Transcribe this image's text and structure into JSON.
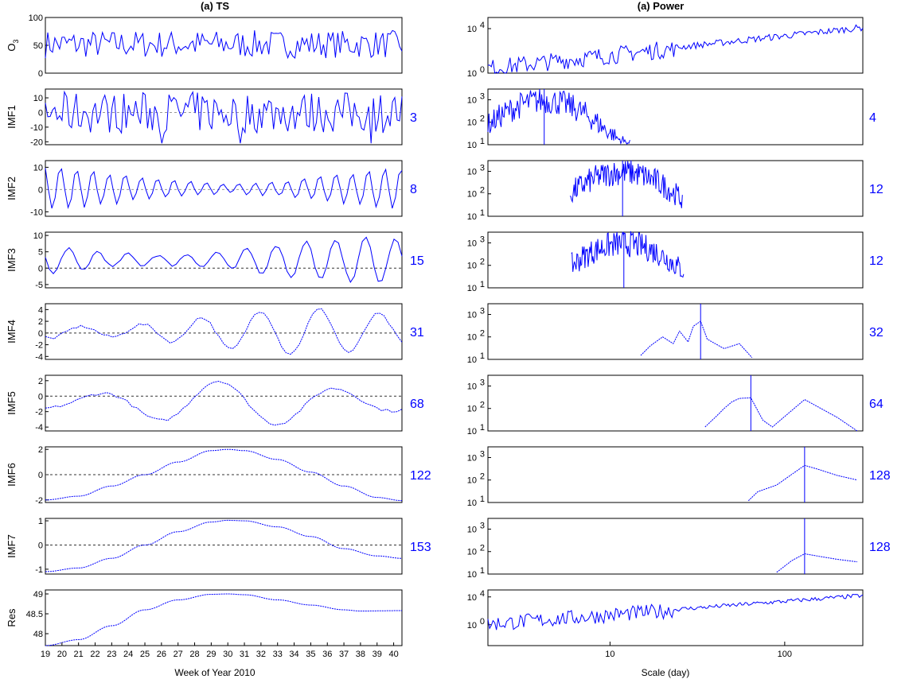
{
  "colors": {
    "line": "#0000ff",
    "axis": "#000000",
    "zero": "#999999"
  },
  "left_title": "(a) TS",
  "right_title": "(a) Power",
  "left_xlabel": "Week of Year 2010",
  "right_xlabel": "Scale (day)",
  "left_xticks": [
    "19",
    "20",
    "21",
    "22",
    "23",
    "24",
    "25",
    "26",
    "27",
    "28",
    "29",
    "30",
    "31",
    "32",
    "33",
    "34",
    "35",
    "36",
    "37",
    "38",
    "39",
    "40"
  ],
  "right_xticks": [
    "10",
    "100"
  ],
  "chart_data": [
    {
      "type": "line",
      "panel": "time-series",
      "ylabel": "O3",
      "ylim": [
        0,
        100
      ],
      "yticks": [
        "100",
        "50",
        "0"
      ],
      "xlim": [
        19,
        40.5
      ],
      "zero_line": false,
      "description": "noisy ozone weekly series roughly 20-85"
    },
    {
      "type": "line",
      "panel": "time-series",
      "ylabel": "IMF1",
      "ylim": [
        -22,
        16
      ],
      "yticks": [
        "10",
        "0",
        "-10",
        "-20"
      ],
      "xlim": [
        19,
        40.5
      ],
      "period_label": "3",
      "zero_line": true
    },
    {
      "type": "line",
      "panel": "time-series",
      "ylabel": "IMF2",
      "ylim": [
        -12,
        13
      ],
      "yticks": [
        "10",
        "0",
        "-10"
      ],
      "xlim": [
        19,
        40.5
      ],
      "period_label": "8",
      "zero_line": true
    },
    {
      "type": "line",
      "panel": "time-series",
      "ylabel": "IMF3",
      "ylim": [
        -6,
        11
      ],
      "yticks": [
        "10",
        "5",
        "0",
        "-5"
      ],
      "xlim": [
        19,
        40.5
      ],
      "period_label": "15",
      "zero_line": true
    },
    {
      "type": "line",
      "panel": "time-series",
      "ylabel": "IMF4",
      "ylim": [
        -4.5,
        5
      ],
      "yticks": [
        "4",
        "2",
        "0",
        "-2",
        "-4"
      ],
      "xlim": [
        19,
        40.5
      ],
      "period_label": "31",
      "zero_line": true
    },
    {
      "type": "line",
      "panel": "time-series",
      "ylabel": "IMF5",
      "ylim": [
        -4.5,
        2.7
      ],
      "yticks": [
        "2",
        "0",
        "-2",
        "-4"
      ],
      "xlim": [
        19,
        40.5
      ],
      "period_label": "68",
      "zero_line": true
    },
    {
      "type": "line",
      "panel": "time-series",
      "ylabel": "IMF6",
      "ylim": [
        -2.2,
        2.2
      ],
      "yticks": [
        "2",
        "0",
        "-2"
      ],
      "xlim": [
        19,
        40.5
      ],
      "period_label": "122",
      "zero_line": true,
      "x": [
        19,
        21,
        23,
        25,
        27,
        29,
        30,
        31,
        33,
        35,
        37,
        39,
        40.5
      ],
      "y": [
        -2,
        -1.7,
        -0.9,
        0,
        1,
        1.9,
        2,
        1.9,
        1.2,
        0.2,
        -0.9,
        -1.8,
        -2.05
      ]
    },
    {
      "type": "line",
      "panel": "time-series",
      "ylabel": "IMF7",
      "ylim": [
        -1.2,
        1.1
      ],
      "yticks": [
        "1",
        "0",
        "-1"
      ],
      "xlim": [
        19,
        40.5
      ],
      "period_label": "153",
      "zero_line": true,
      "x": [
        19,
        21,
        23,
        25,
        27,
        29,
        30,
        31,
        33,
        35,
        37,
        39,
        40.5
      ],
      "y": [
        -1.1,
        -0.95,
        -0.55,
        0,
        0.55,
        0.95,
        1.02,
        1,
        0.75,
        0.35,
        -0.15,
        -0.45,
        -0.55
      ]
    },
    {
      "type": "line",
      "panel": "time-series",
      "ylabel": "Res",
      "ylim": [
        47.7,
        49.1
      ],
      "yticks": [
        "49",
        "48.5",
        "48"
      ],
      "xlim": [
        19,
        40.5
      ],
      "zero_line": false,
      "x": [
        19,
        21,
        23,
        25,
        27,
        29,
        30,
        31,
        33,
        35,
        37,
        38,
        40.5
      ],
      "y": [
        47.7,
        47.85,
        48.2,
        48.6,
        48.85,
        48.99,
        49,
        48.98,
        48.85,
        48.72,
        48.6,
        48.57,
        48.58
      ]
    },
    {
      "type": "line",
      "panel": "power",
      "log_y": true,
      "yticks": [
        "10^4",
        "10^0"
      ],
      "ylim": [
        1,
        100000
      ],
      "xlim": [
        2,
        280
      ],
      "description": "full spectrum, noisy at small scales rising to ~3e4 at 280 days"
    },
    {
      "type": "line",
      "panel": "power",
      "log_y": true,
      "yticks": [
        "10^3",
        "10^2",
        "10^1"
      ],
      "ylim": [
        10,
        3000
      ],
      "xlim": [
        2,
        280
      ],
      "dominant_scale": "4",
      "peak_marker_day": 4.2
    },
    {
      "type": "line",
      "panel": "power",
      "log_y": true,
      "yticks": [
        "10^3",
        "10^2",
        "10^1"
      ],
      "ylim": [
        10,
        3000
      ],
      "xlim": [
        2,
        280
      ],
      "dominant_scale": "12",
      "peak_marker_day": 11.8
    },
    {
      "type": "line",
      "panel": "power",
      "log_y": true,
      "yticks": [
        "10^3",
        "10^2",
        "10^1"
      ],
      "ylim": [
        10,
        3000
      ],
      "xlim": [
        2,
        280
      ],
      "dominant_scale": "12",
      "peak_marker_day": 12
    },
    {
      "type": "line",
      "panel": "power",
      "log_y": true,
      "yticks": [
        "10^3",
        "10^2",
        "10^1"
      ],
      "ylim": [
        10,
        3000
      ],
      "xlim": [
        2,
        280
      ],
      "dominant_scale": "32",
      "peak_marker_day": 33,
      "x": [
        15,
        17,
        20,
        23,
        25,
        28,
        30,
        33,
        36,
        40,
        45,
        55,
        65
      ],
      "y": [
        15,
        40,
        100,
        50,
        180,
        60,
        300,
        500,
        80,
        50,
        30,
        50,
        12
      ]
    },
    {
      "type": "line",
      "panel": "power",
      "log_y": true,
      "yticks": [
        "10^3",
        "10^2",
        "10^1"
      ],
      "ylim": [
        10,
        3000
      ],
      "xlim": [
        2,
        280
      ],
      "dominant_scale": "64",
      "peak_marker_day": 64,
      "x": [
        35,
        40,
        45,
        50,
        55,
        64,
        75,
        85,
        130,
        200,
        260
      ],
      "y": [
        15,
        40,
        100,
        200,
        280,
        300,
        30,
        15,
        250,
        40,
        10
      ]
    },
    {
      "type": "line",
      "panel": "power",
      "log_y": true,
      "yticks": [
        "10^3",
        "10^2",
        "10^1"
      ],
      "ylim": [
        10,
        3000
      ],
      "xlim": [
        2,
        280
      ],
      "dominant_scale": "128",
      "peak_marker_day": 130,
      "x": [
        62,
        70,
        90,
        110,
        130,
        160,
        200,
        260
      ],
      "y": [
        12,
        30,
        60,
        180,
        450,
        280,
        160,
        100
      ]
    },
    {
      "type": "line",
      "panel": "power",
      "log_y": true,
      "yticks": [
        "10^3",
        "10^2",
        "10^1"
      ],
      "ylim": [
        10,
        3000
      ],
      "xlim": [
        2,
        280
      ],
      "dominant_scale": "128",
      "peak_marker_day": 130,
      "x": [
        90,
        110,
        130,
        160,
        200,
        260
      ],
      "y": [
        12,
        40,
        80,
        60,
        45,
        35
      ]
    },
    {
      "type": "line",
      "panel": "power",
      "log_y": true,
      "yticks": [
        "10^4",
        "10^0"
      ],
      "ylim": [
        0.001,
        100000
      ],
      "xlim": [
        2,
        280
      ],
      "description": "residual spectrum rising from ~1 to ~2e4"
    }
  ]
}
